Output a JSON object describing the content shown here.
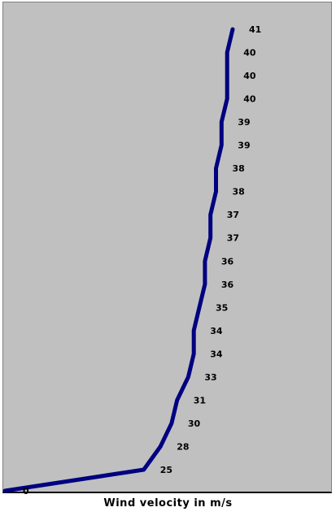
{
  "chart_data": {
    "type": "line",
    "title": "",
    "xlabel": "Wind velocity in m/s",
    "ylabel": "",
    "grid": false,
    "legend": "none",
    "series": [
      {
        "values": [
          0,
          25,
          28,
          30,
          31,
          33,
          34,
          34,
          35,
          36,
          36,
          37,
          37,
          38,
          38,
          39,
          39,
          40,
          40,
          40,
          41
        ],
        "data_labels": [
          "0",
          "25",
          "28",
          "30",
          "31",
          "33",
          "34",
          "34",
          "35",
          "36",
          "36",
          "37",
          "37",
          "38",
          "38",
          "39",
          "39",
          "40",
          "40",
          "40",
          "41"
        ]
      }
    ],
    "xlim": [
      0,
      41
    ],
    "colors": {
      "line": "#000080",
      "plot_background": "#c0c0c0",
      "page_background": "#ffffff"
    }
  }
}
